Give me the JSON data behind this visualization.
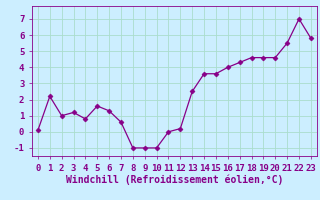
{
  "x": [
    0,
    1,
    2,
    3,
    4,
    5,
    6,
    7,
    8,
    9,
    10,
    11,
    12,
    13,
    14,
    15,
    16,
    17,
    18,
    19,
    20,
    21,
    22,
    23
  ],
  "y": [
    0.1,
    2.2,
    1.0,
    1.2,
    0.8,
    1.6,
    1.3,
    0.6,
    -1.0,
    -1.0,
    -1.0,
    0.0,
    0.2,
    2.5,
    3.6,
    3.6,
    4.0,
    4.3,
    4.6,
    4.6,
    4.6,
    5.5,
    7.0,
    5.8
  ],
  "line_color": "#880088",
  "marker": "D",
  "marker_size": 2.5,
  "bg_color": "#cceeff",
  "grid_color": "#aaddcc",
  "xlabel": "Windchill (Refroidissement éolien,°C)",
  "xlabel_color": "#880088",
  "tick_color": "#880088",
  "ylim": [
    -1.5,
    7.8
  ],
  "xlim": [
    -0.5,
    23.5
  ],
  "yticks": [
    -1,
    0,
    1,
    2,
    3,
    4,
    5,
    6,
    7
  ],
  "xticks": [
    0,
    1,
    2,
    3,
    4,
    5,
    6,
    7,
    8,
    9,
    10,
    11,
    12,
    13,
    14,
    15,
    16,
    17,
    18,
    19,
    20,
    21,
    22,
    23
  ],
  "tick_fontsize": 6.5,
  "xlabel_fontsize": 7
}
